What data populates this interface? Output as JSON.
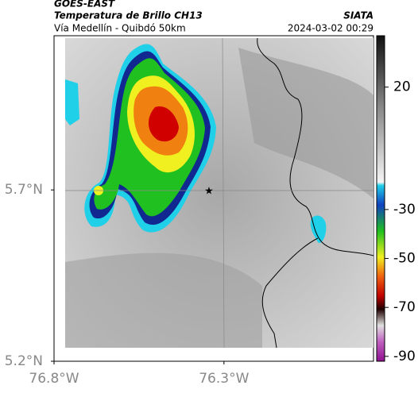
{
  "header": {
    "source": "GOES-EAST",
    "title": "Temperatura de Brillo CH13",
    "subtitle": "Vía Medellín - Quibdó 50km",
    "brand": "SIATA",
    "timestamp": "2024-03-02 00:29"
  },
  "map": {
    "xlim": [
      -76.8,
      -75.86
    ],
    "ylim": [
      5.2,
      6.15
    ],
    "xticks": [
      {
        "value": -76.8,
        "label": "76.8°W"
      },
      {
        "value": -76.3,
        "label": "76.3°W"
      }
    ],
    "yticks": [
      {
        "value": 5.7,
        "label": "5.7°N"
      },
      {
        "value": 5.2,
        "label": "5.2°N"
      }
    ]
  },
  "colorbar": {
    "lim": [
      41,
      -92
    ],
    "ticks": [
      20,
      -30,
      -50,
      -70,
      -90
    ]
  }
}
